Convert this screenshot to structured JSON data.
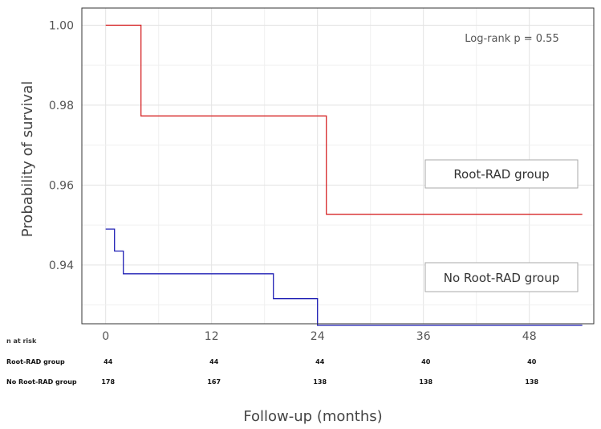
{
  "chart_data": {
    "type": "line",
    "title": "",
    "xlabel": "Follow-up (months)",
    "ylabel": "Probability of survival",
    "xlim": [
      -2.7,
      55.3
    ],
    "ylim": [
      0.9253,
      1.0043
    ],
    "x_ticks": [
      "0",
      "12",
      "24",
      "36",
      "48"
    ],
    "y_ticks": [
      "0.94",
      "0.96",
      "0.98",
      "1.00"
    ],
    "grid": true,
    "annotation": "Log-rank p = 0.55",
    "colors": {
      "root": "#d62728",
      "noroot": "#1f1fb4"
    },
    "series": [
      {
        "name": "Root-RAD group",
        "color": "#d62728",
        "x": [
          0,
          4,
          4,
          25,
          25,
          54
        ],
        "y": [
          1.0,
          1.0,
          0.9773,
          0.9773,
          0.9527,
          0.9527
        ]
      },
      {
        "name": "No Root-RAD group",
        "color": "#1f1fb4",
        "x": [
          0,
          1,
          1,
          2,
          2,
          19,
          19,
          24,
          24,
          54
        ],
        "y": [
          0.949,
          0.949,
          0.9435,
          0.9435,
          0.9378,
          0.9378,
          0.9316,
          0.9316,
          0.9249,
          0.9249
        ]
      }
    ],
    "legend": [
      "Root-RAD group",
      "No Root-RAD group"
    ],
    "risk_table": {
      "header": "n at risk",
      "times": [
        "0",
        "12",
        "24",
        "36",
        "48"
      ],
      "rows": [
        {
          "label": "Root-RAD group",
          "values": [
            "44",
            "44",
            "44",
            "40",
            "40"
          ]
        },
        {
          "label": "No Root-RAD group",
          "values": [
            "178",
            "167",
            "138",
            "138",
            "138"
          ]
        }
      ]
    }
  }
}
